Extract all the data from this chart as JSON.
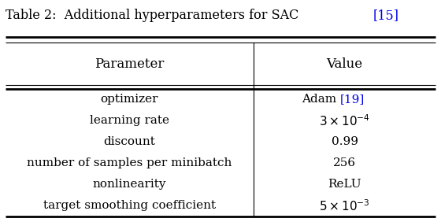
{
  "title_black": "Table 2:  Additional hyperparameters for SAC ",
  "title_ref": "[15]",
  "ref_color": "#0000EE",
  "col_headers": [
    "Parameter",
    "Value"
  ],
  "rows": [
    [
      "optimizer",
      "Adam ",
      "[19]"
    ],
    [
      "learning rate",
      "$3 \\times 10^{-4}$",
      ""
    ],
    [
      "discount",
      "0.99",
      ""
    ],
    [
      "number of samples per minibatch",
      "256",
      ""
    ],
    [
      "nonlinearity",
      "ReLU",
      ""
    ],
    [
      "target smoothing coefficient",
      "$5 \\times 10^{-3}$",
      ""
    ]
  ],
  "bg_color": "#FFFFFF",
  "figsize": [
    5.6,
    2.82
  ],
  "dpi": 100,
  "col_split": 0.575,
  "title_fontsize": 11.5,
  "header_fontsize": 12,
  "body_fontsize": 11
}
